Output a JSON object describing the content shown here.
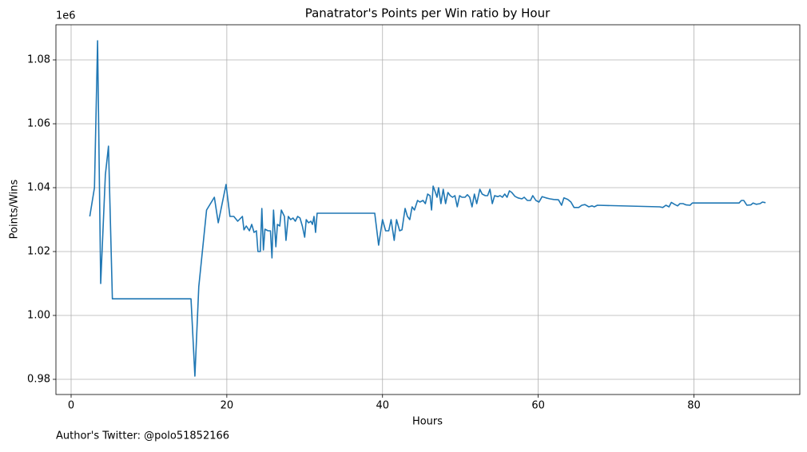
{
  "chart_data": {
    "type": "line",
    "title": "Panatrator's Points per Win ratio by Hour",
    "x_label": "Hours",
    "y_label": "Points/Wins",
    "y_offset_label": "1e6",
    "footnote": "Author's Twitter: @polo51852166",
    "color": "#1f77b4",
    "grid": true,
    "xlim": [
      -1.95,
      93.6
    ],
    "ylim": [
      975250,
      1091000
    ],
    "xticks": [
      0,
      20,
      40,
      60,
      80
    ],
    "yticks": [
      {
        "value": 980000,
        "label": "0.98"
      },
      {
        "value": 1000000,
        "label": "1.00"
      },
      {
        "value": 1020000,
        "label": "1.02"
      },
      {
        "value": 1040000,
        "label": "1.04"
      },
      {
        "value": 1060000,
        "label": "1.06"
      },
      {
        "value": 1080000,
        "label": "1.08"
      }
    ],
    "x": [
      2.4,
      3.0,
      3.4,
      3.8,
      4.4,
      4.8,
      5.3,
      15.4,
      15.9,
      16.4,
      17.4,
      18.4,
      18.9,
      19.9,
      20.4,
      20.9,
      21.4,
      22.0,
      22.2,
      22.5,
      22.9,
      23.2,
      23.5,
      23.8,
      24.0,
      24.3,
      24.5,
      24.7,
      24.9,
      25.3,
      25.6,
      25.8,
      26.0,
      26.3,
      26.5,
      26.8,
      27.0,
      27.4,
      27.6,
      27.9,
      28.2,
      28.5,
      28.8,
      29.1,
      29.4,
      29.7,
      30.0,
      30.2,
      30.5,
      30.8,
      31.0,
      31.2,
      31.4,
      31.6,
      39.0,
      39.5,
      40.0,
      40.4,
      40.8,
      41.1,
      41.5,
      41.8,
      42.2,
      42.5,
      42.9,
      43.2,
      43.5,
      43.8,
      44.1,
      44.5,
      44.8,
      45.2,
      45.5,
      45.8,
      46.1,
      46.3,
      46.5,
      46.8,
      47.0,
      47.2,
      47.5,
      47.8,
      48.1,
      48.4,
      48.7,
      49.0,
      49.3,
      49.6,
      49.9,
      50.2,
      50.6,
      50.9,
      51.2,
      51.5,
      51.8,
      52.1,
      52.5,
      52.8,
      53.2,
      53.5,
      53.8,
      54.1,
      54.4,
      54.8,
      55.1,
      55.4,
      55.7,
      56.0,
      56.3,
      56.6,
      57.0,
      57.4,
      57.9,
      58.2,
      58.6,
      59.0,
      59.3,
      59.7,
      60.1,
      60.5,
      61.0,
      61.5,
      62.0,
      62.6,
      63.0,
      63.3,
      63.8,
      64.2,
      64.6,
      65.2,
      65.6,
      66.0,
      66.5,
      66.9,
      67.2,
      67.6,
      75.6,
      76.0,
      76.4,
      76.8,
      77.1,
      77.5,
      77.9,
      78.2,
      78.6,
      79.0,
      79.5,
      79.8,
      85.8,
      86.1,
      86.4,
      86.8,
      87.3,
      87.6,
      88.0,
      88.5,
      88.8,
      89.2
    ],
    "values": [
      1031000,
      1040000,
      1086000,
      1010000,
      1044000,
      1053000,
      1005200,
      1005200,
      981000,
      1009000,
      1033000,
      1037000,
      1029000,
      1041000,
      1031000,
      1031000,
      1029500,
      1031000,
      1026800,
      1028000,
      1026500,
      1028500,
      1026000,
      1026500,
      1020000,
      1020000,
      1033500,
      1020500,
      1027000,
      1026500,
      1026500,
      1018000,
      1033000,
      1021500,
      1028500,
      1028000,
      1033000,
      1031000,
      1023500,
      1031000,
      1030000,
      1030500,
      1029500,
      1031000,
      1030500,
      1028000,
      1024500,
      1030000,
      1029000,
      1029500,
      1028500,
      1031000,
      1026000,
      1032000,
      1032000,
      1022000,
      1030000,
      1026500,
      1026500,
      1030000,
      1023500,
      1030000,
      1026500,
      1026800,
      1033500,
      1031000,
      1030000,
      1034000,
      1033000,
      1036000,
      1035500,
      1036000,
      1035000,
      1038000,
      1037500,
      1033000,
      1040500,
      1038500,
      1037000,
      1040000,
      1035000,
      1039500,
      1035000,
      1038500,
      1037500,
      1037000,
      1037500,
      1034000,
      1037500,
      1037000,
      1037000,
      1037800,
      1037000,
      1034000,
      1038000,
      1035000,
      1039500,
      1038000,
      1037500,
      1037500,
      1039500,
      1035000,
      1037500,
      1037200,
      1037500,
      1037000,
      1038000,
      1037000,
      1039000,
      1038500,
      1037300,
      1036800,
      1036500,
      1037000,
      1036000,
      1036000,
      1037500,
      1036000,
      1035500,
      1037200,
      1036800,
      1036500,
      1036300,
      1036200,
      1034500,
      1036800,
      1036300,
      1035500,
      1033800,
      1033800,
      1034500,
      1034700,
      1034000,
      1034300,
      1034000,
      1034500,
      1034000,
      1033800,
      1034500,
      1034000,
      1035400,
      1034800,
      1034300,
      1035000,
      1035000,
      1034600,
      1034500,
      1035200,
      1035200,
      1036000,
      1036000,
      1034500,
      1034600,
      1035200,
      1034800,
      1035000,
      1035500,
      1035300
    ]
  }
}
